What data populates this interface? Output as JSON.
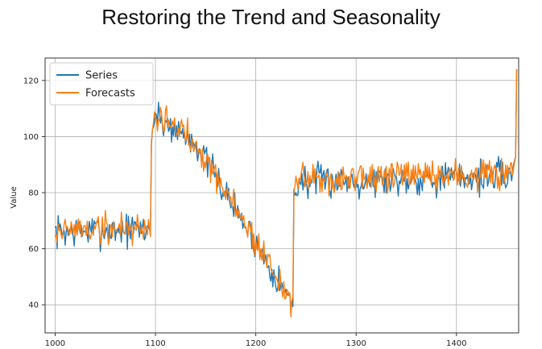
{
  "page": {
    "title": "Restoring the Trend and Seasonality"
  },
  "chart_data": {
    "type": "line",
    "title": "Restoring the Trend and Seasonality",
    "xlabel": "",
    "ylabel": "Value",
    "xlim": [
      990,
      1462
    ],
    "ylim": [
      30,
      128
    ],
    "xticks": [
      1000,
      1100,
      1200,
      1300,
      1400
    ],
    "yticks": [
      40,
      60,
      80,
      100,
      120
    ],
    "grid": true,
    "legend_position": "top-left",
    "series": [
      {
        "name": "Series",
        "color": "#1f77b4",
        "seed": 7,
        "level_shift": 0
      },
      {
        "name": "Forecasts",
        "color": "#ff7f0e",
        "seed": 19,
        "level_shift": 0.6
      }
    ],
    "segments": [
      {
        "x_start": 1000,
        "x_end": 1095,
        "y_start": 66,
        "y_end": 67,
        "noise": 5.5
      },
      {
        "x_start": 1096,
        "x_end": 1100,
        "y_start": 100,
        "y_end": 108,
        "noise": 4
      },
      {
        "x_start": 1101,
        "x_end": 1140,
        "y_start": 107,
        "y_end": 98,
        "noise": 5.5
      },
      {
        "x_start": 1141,
        "x_end": 1237,
        "y_start": 97,
        "y_end": 40,
        "noise": 5
      },
      {
        "x_start": 1238,
        "x_end": 1245,
        "y_start": 80,
        "y_end": 84,
        "noise": 4
      },
      {
        "x_start": 1246,
        "x_end": 1457,
        "y_start": 84,
        "y_end": 86,
        "noise": 5.5
      }
    ],
    "end_points": [
      {
        "x": 1459,
        "y": 93
      },
      {
        "x": 1460,
        "y": 124
      }
    ]
  }
}
